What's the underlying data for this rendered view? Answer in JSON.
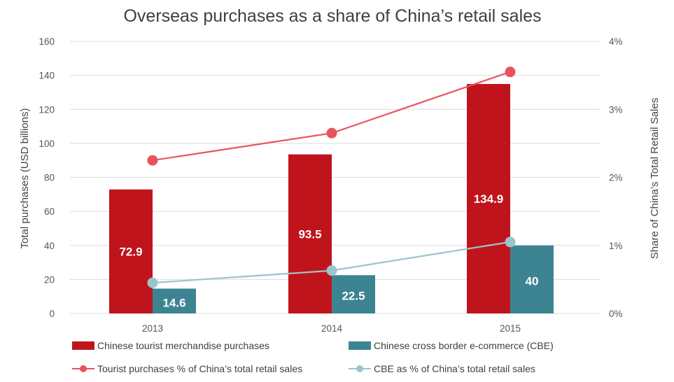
{
  "chart_data": {
    "type": "bar",
    "title": "Overseas purchases as a share of China’s retail sales",
    "categories": [
      "2013",
      "2014",
      "2015"
    ],
    "ylabel": "Total purchases (USD billions)",
    "y2label": "Share of China’s Total Retail Sales",
    "ylim": [
      0,
      160
    ],
    "yticks": [
      "0",
      "20",
      "40",
      "60",
      "80",
      "100",
      "120",
      "140",
      "160"
    ],
    "y2lim": [
      0,
      4
    ],
    "y2ticks": [
      "0%",
      "1%",
      "2%",
      "3%",
      "4%"
    ],
    "grid": true,
    "legend_position": "bottom",
    "series": [
      {
        "name": "Chinese tourist merchandise purchases",
        "type": "bar",
        "axis": "left",
        "color": "#c0141c",
        "values": [
          72.9,
          93.5,
          134.9
        ],
        "labels": [
          "72.9",
          "93.5",
          "134.9"
        ]
      },
      {
        "name": "Chinese cross border e-commerce (CBE)",
        "type": "bar",
        "axis": "left",
        "color": "#3d8493",
        "values": [
          14.6,
          22.5,
          40
        ],
        "labels": [
          "14.6",
          "22.5",
          "40"
        ]
      },
      {
        "name": "Tourist purchases % of China’s total retail sales",
        "type": "line",
        "axis": "right",
        "color": "#e8545c",
        "values": [
          2.25,
          2.65,
          3.55
        ]
      },
      {
        "name": "CBE as % of China’s total retail sales",
        "type": "line",
        "axis": "right",
        "color": "#9cc4cc",
        "values": [
          0.45,
          0.63,
          1.05
        ]
      }
    ]
  }
}
